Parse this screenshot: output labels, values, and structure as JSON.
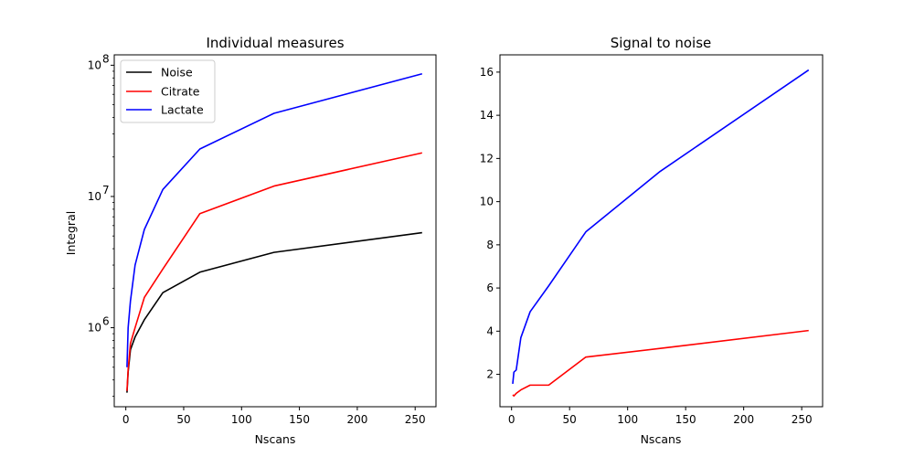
{
  "chart_data": [
    {
      "type": "line",
      "title": "Individual measures",
      "xlabel": "Nscans",
      "ylabel": "Integral",
      "yscale": "log",
      "xlim": [
        -10,
        268
      ],
      "ylim": [
        250000,
        120000000
      ],
      "xticks": [
        0,
        50,
        100,
        150,
        200,
        250
      ],
      "yticks": [
        {
          "value": 1000000,
          "base": "10",
          "exp": "6"
        },
        {
          "value": 10000000,
          "base": "10",
          "exp": "7"
        },
        {
          "value": 100000000,
          "base": "10",
          "exp": "8"
        }
      ],
      "grid": false,
      "legend": "top-left",
      "x": [
        1,
        2,
        4,
        8,
        16,
        32,
        64,
        128,
        256
      ],
      "series": [
        {
          "name": "Noise",
          "color": "#000000",
          "values": [
            320000,
            460000,
            680000,
            850000,
            1150000,
            1850000,
            2650000,
            3750000,
            5300000
          ]
        },
        {
          "name": "Citrate",
          "color": "#ff0000",
          "values": [
            330000,
            480000,
            760000,
            1000000,
            1700000,
            2800000,
            7400000,
            12000000,
            21500000
          ]
        },
        {
          "name": "Lactate",
          "color": "#0000ff",
          "values": [
            500000,
            1000000,
            1600000,
            3000000,
            5600000,
            11300000,
            23000000,
            43000000,
            86000000
          ]
        }
      ]
    },
    {
      "type": "line",
      "title": "Signal to noise",
      "xlabel": "Nscans",
      "ylabel": "",
      "yscale": "linear",
      "xlim": [
        -10,
        268
      ],
      "ylim": [
        0.5,
        16.8
      ],
      "xticks": [
        0,
        50,
        100,
        150,
        200,
        250
      ],
      "yticks": [
        2,
        4,
        6,
        8,
        10,
        12,
        14,
        16
      ],
      "grid": false,
      "x": [
        1,
        2,
        4,
        8,
        16,
        32,
        64,
        128,
        256
      ],
      "series": [
        {
          "name": "",
          "color": "#ff0000",
          "values": [
            1.05,
            1.0,
            1.12,
            1.28,
            1.5,
            1.5,
            2.8,
            3.2,
            4.03
          ]
        },
        {
          "name": "",
          "color": "#0000ff",
          "values": [
            1.56,
            2.1,
            2.2,
            3.7,
            4.9,
            6.1,
            8.6,
            11.4,
            16.1
          ]
        }
      ]
    }
  ]
}
